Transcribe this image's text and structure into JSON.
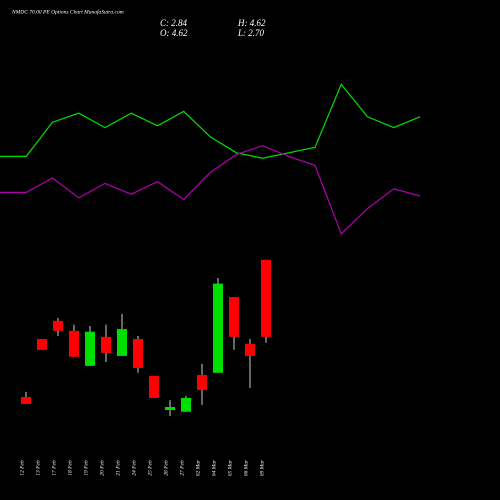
{
  "header": {
    "title": "NMDC 70.00 PE Options Chart MunafaSutra.com",
    "ohlc": [
      "C: 2.84",
      "H: 4.62",
      "O: 4.62",
      "L: 2.70"
    ]
  },
  "chart_data": [
    {
      "type": "line",
      "ylim": [
        0,
        100
      ],
      "series": [
        {
          "color": "#00e000",
          "values": [
            52,
            52,
            71,
            76,
            68,
            76,
            69,
            77,
            63,
            54,
            51,
            54,
            57,
            92,
            74,
            68,
            74
          ]
        },
        {
          "color": "#b000b0",
          "values": [
            32,
            32,
            40,
            29,
            37,
            31,
            38,
            28,
            43,
            53,
            58,
            52,
            47,
            9,
            23,
            34,
            30
          ]
        }
      ]
    },
    {
      "type": "candlestick",
      "ylim": [
        0.92,
        4.8
      ],
      "up_color": "#00e000",
      "down_color": "#ff0000",
      "categories": [
        "12 Feb",
        "13 Feb",
        "17 Feb",
        "18 Feb",
        "19 Feb",
        "20 Feb",
        "21 Feb",
        "24 Feb",
        "25 Feb",
        "26 Feb",
        "27 Feb",
        "02 Mar",
        "04 Mar",
        "05 Mar",
        "06 Mar",
        "09 Mar"
      ],
      "open": [
        1.45,
        2.79,
        3.21,
        2.98,
        2.17,
        2.84,
        2.4,
        2.79,
        1.94,
        1.15,
        1.11,
        1.96,
        2.01,
        3.76,
        2.68,
        4.62
      ],
      "high": [
        1.57,
        2.79,
        3.28,
        3.12,
        3.09,
        3.12,
        3.37,
        2.86,
        1.94,
        1.38,
        1.48,
        2.22,
        4.2,
        3.76,
        2.79,
        4.62
      ],
      "low": [
        1.29,
        2.54,
        2.86,
        2.38,
        2.17,
        2.26,
        2.4,
        2.01,
        1.43,
        1.01,
        1.11,
        1.27,
        2.01,
        2.54,
        1.66,
        2.7
      ],
      "close": [
        1.29,
        2.54,
        2.98,
        2.38,
        2.96,
        2.47,
        3.02,
        2.12,
        1.43,
        1.22,
        1.43,
        1.61,
        4.07,
        2.84,
        2.4,
        2.84
      ]
    }
  ]
}
